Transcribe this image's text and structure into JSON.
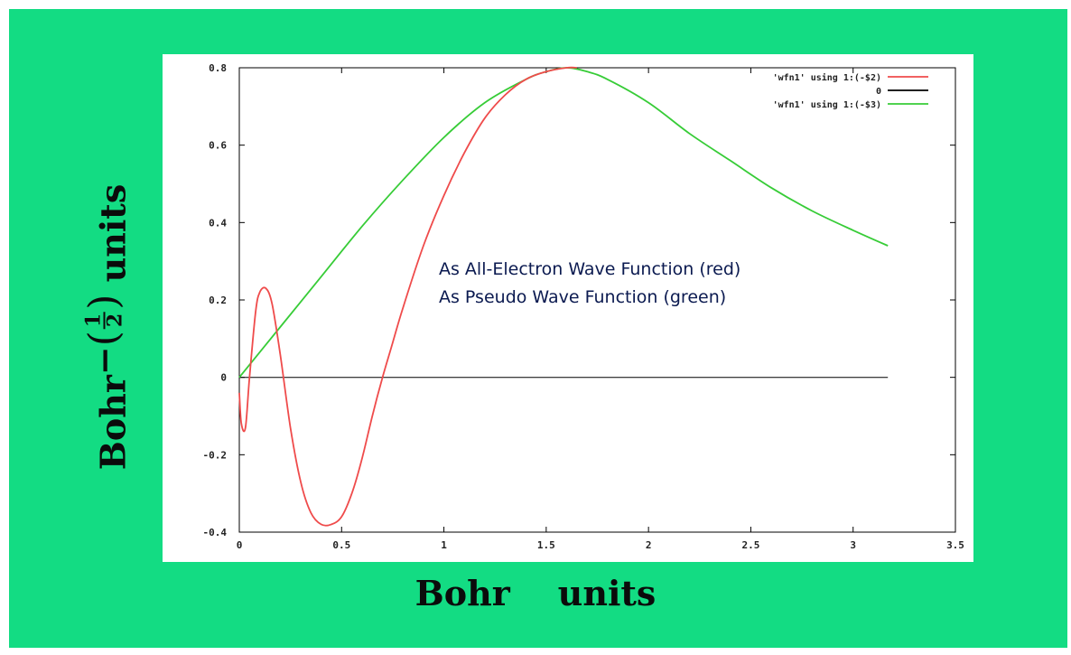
{
  "colors": {
    "background": "#13dc83",
    "red_curve": "#ef4b4b",
    "green_curve": "#37cc37",
    "zero_line": "#000000"
  },
  "annotation": {
    "line1": "As All-Electron  Wave Function (red)",
    "line2": "As Pseudo  Wave Function (green)"
  },
  "axis_labels": {
    "xlabel": "Bohr    units",
    "ylabel_base": "Bohr",
    "ylabel_minus": "−",
    "ylabel_open": "(",
    "ylabel_num": "1",
    "ylabel_den": "2",
    "ylabel_close": ")",
    "ylabel_units": " units"
  },
  "chart_data": {
    "type": "line",
    "xlim": [
      0,
      3.5
    ],
    "ylim": [
      -0.4,
      0.8
    ],
    "x_ticks": [
      0,
      0.5,
      1,
      1.5,
      2,
      2.5,
      3,
      3.5
    ],
    "x_tick_labels": [
      "0",
      "0.5",
      "1",
      "1.5",
      "2",
      "2.5",
      "3",
      "3.5"
    ],
    "y_ticks": [
      -0.4,
      -0.2,
      0,
      0.2,
      0.4,
      0.6,
      0.8
    ],
    "y_tick_labels": [
      "-0.4",
      "-0.2",
      "0",
      "0.2",
      "0.4",
      "0.6",
      "0.8"
    ],
    "grid": false,
    "legend_position": "top-right",
    "series": [
      {
        "name": "'wfn1' using 1:(-$2)",
        "color": "#ef4b4b",
        "x": [
          0,
          0.01,
          0.03,
          0.05,
          0.08,
          0.1,
          0.13,
          0.16,
          0.2,
          0.25,
          0.3,
          0.35,
          0.4,
          0.45,
          0.5,
          0.55,
          0.6,
          0.65,
          0.7,
          0.75,
          0.8,
          0.9,
          1.0,
          1.1,
          1.2,
          1.3,
          1.4,
          1.5,
          1.6,
          1.65
        ],
        "y": [
          -0.04,
          -0.12,
          -0.13,
          0.0,
          0.17,
          0.22,
          0.23,
          0.19,
          0.06,
          -0.13,
          -0.27,
          -0.35,
          -0.38,
          -0.38,
          -0.36,
          -0.3,
          -0.21,
          -0.1,
          0.0,
          0.09,
          0.18,
          0.34,
          0.47,
          0.58,
          0.67,
          0.73,
          0.77,
          0.79,
          0.8,
          0.8
        ]
      },
      {
        "name": "0",
        "color": "#000000",
        "x": [
          0,
          3.17
        ],
        "y": [
          0,
          0
        ]
      },
      {
        "name": "'wfn1' using 1:(-$3)",
        "color": "#37cc37",
        "x": [
          0,
          0.2,
          0.4,
          0.6,
          0.8,
          1.0,
          1.2,
          1.4,
          1.5,
          1.6,
          1.7,
          1.8,
          2.0,
          2.2,
          2.4,
          2.6,
          2.8,
          3.0,
          3.17
        ],
        "y": [
          0.0,
          0.13,
          0.26,
          0.39,
          0.51,
          0.62,
          0.71,
          0.77,
          0.79,
          0.8,
          0.79,
          0.77,
          0.71,
          0.63,
          0.56,
          0.49,
          0.43,
          0.38,
          0.34
        ]
      }
    ]
  }
}
